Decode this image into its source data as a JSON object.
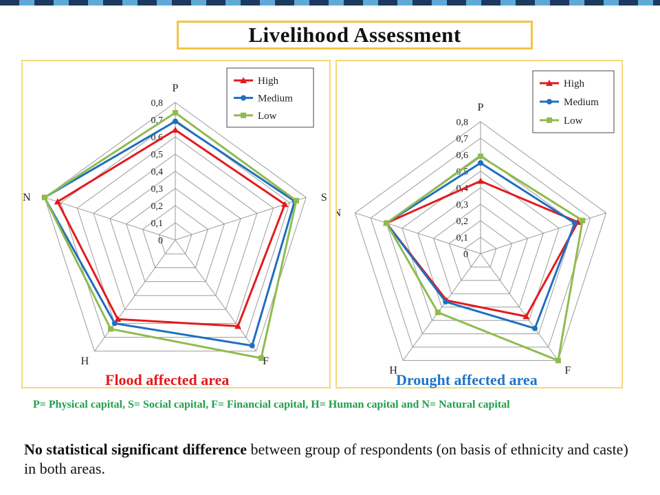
{
  "page": {
    "title": "Livelihood Assessment",
    "legend_note": "P= Physical capital, S= Social capital, F= Financial capital, H= Human capital and N= Natural capital",
    "conclusion_bold": "No statistical significant difference",
    "conclusion_rest": " between group of respondents (on basis of ethnicity and caste) in both areas."
  },
  "colors": {
    "High": "#e31a1c",
    "Medium": "#1f6fbf",
    "Low": "#8fbb4f",
    "panel_border": "#f5d77a",
    "title_border": "#f5c342",
    "flood_caption": "#e31a1c",
    "drought_caption": "#1f74c8",
    "note": "#1fa04a"
  },
  "chart_data": [
    {
      "type": "radar",
      "caption": "Flood affected area",
      "categories": [
        "P",
        "S",
        "F",
        "H",
        "N"
      ],
      "rticks": [
        "0",
        "0,1",
        "0,2",
        "0,3",
        "0,4",
        "0,5",
        "0,6",
        "0,7",
        "0,8"
      ],
      "rlim": [
        0,
        0.8
      ],
      "legend": "top-right",
      "series": [
        {
          "name": "High",
          "values": [
            0.64,
            0.67,
            0.62,
            0.57,
            0.72
          ]
        },
        {
          "name": "Medium",
          "values": [
            0.69,
            0.73,
            0.76,
            0.6,
            0.8
          ]
        },
        {
          "name": "Low",
          "values": [
            0.74,
            0.74,
            0.85,
            0.64,
            0.8
          ]
        }
      ]
    },
    {
      "type": "radar",
      "caption": "Drought affected area",
      "categories": [
        "P",
        "S",
        "F",
        "H",
        "N"
      ],
      "rticks": [
        "0",
        "0,1",
        "0,2",
        "0,3",
        "0,4",
        "0,5",
        "0,6",
        "0,7",
        "0,8"
      ],
      "rlim": [
        0,
        0.8
      ],
      "legend": "top-right",
      "series": [
        {
          "name": "High",
          "values": [
            0.44,
            0.62,
            0.47,
            0.35,
            0.6
          ]
        },
        {
          "name": "Medium",
          "values": [
            0.55,
            0.6,
            0.56,
            0.36,
            0.6
          ]
        },
        {
          "name": "Low",
          "values": [
            0.59,
            0.65,
            0.8,
            0.44,
            0.6
          ]
        }
      ]
    }
  ]
}
